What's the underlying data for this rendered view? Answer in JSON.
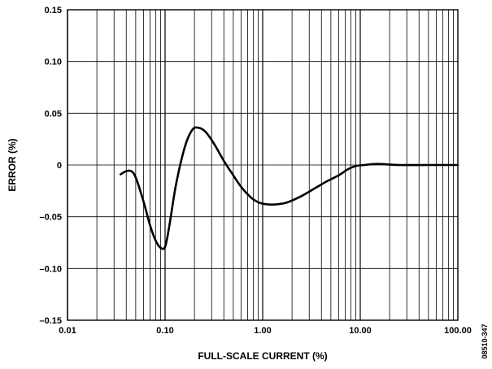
{
  "chart_data": {
    "type": "line",
    "x_scale": "log",
    "xlabel": "FULL-SCALE CURRENT (%)",
    "ylabel": "ERROR (%)",
    "xlim": [
      0.01,
      100
    ],
    "ylim": [
      -0.15,
      0.15
    ],
    "x_tick_values": [
      0.01,
      0.1,
      1,
      10,
      100
    ],
    "x_tick_labels": [
      "0.01",
      "0.10",
      "1.00",
      "10.00",
      "100.00"
    ],
    "y_tick_values": [
      0.15,
      0.1,
      0.05,
      0,
      -0.05,
      -0.1,
      -0.15
    ],
    "y_tick_labels": [
      "0.15",
      "0.10",
      "0.05",
      "0",
      "–0.05",
      "–0.10",
      "–0.15"
    ],
    "grid": true,
    "line_color": "#000000",
    "series": [
      {
        "points": [
          [
            0.035,
            -0.009
          ],
          [
            0.04,
            -0.006
          ],
          [
            0.045,
            -0.006
          ],
          [
            0.05,
            -0.012
          ],
          [
            0.06,
            -0.035
          ],
          [
            0.07,
            -0.058
          ],
          [
            0.08,
            -0.073
          ],
          [
            0.09,
            -0.08
          ],
          [
            0.1,
            -0.079
          ],
          [
            0.11,
            -0.06
          ],
          [
            0.13,
            -0.018
          ],
          [
            0.16,
            0.018
          ],
          [
            0.19,
            0.034
          ],
          [
            0.22,
            0.036
          ],
          [
            0.26,
            0.032
          ],
          [
            0.32,
            0.02
          ],
          [
            0.4,
            0.004
          ],
          [
            0.5,
            -0.01
          ],
          [
            0.6,
            -0.021
          ],
          [
            0.75,
            -0.031
          ],
          [
            0.9,
            -0.036
          ],
          [
            1.1,
            -0.038
          ],
          [
            1.4,
            -0.038
          ],
          [
            1.8,
            -0.036
          ],
          [
            2.5,
            -0.03
          ],
          [
            3.5,
            -0.022
          ],
          [
            4.5,
            -0.016
          ],
          [
            6.0,
            -0.01
          ],
          [
            7.5,
            -0.004
          ],
          [
            9.0,
            -0.001
          ],
          [
            11,
            0.0
          ],
          [
            15,
            0.001
          ],
          [
            25,
            0.0
          ],
          [
            50,
            0.0
          ],
          [
            100,
            0.0
          ]
        ]
      }
    ]
  },
  "side_code": "08510-347"
}
